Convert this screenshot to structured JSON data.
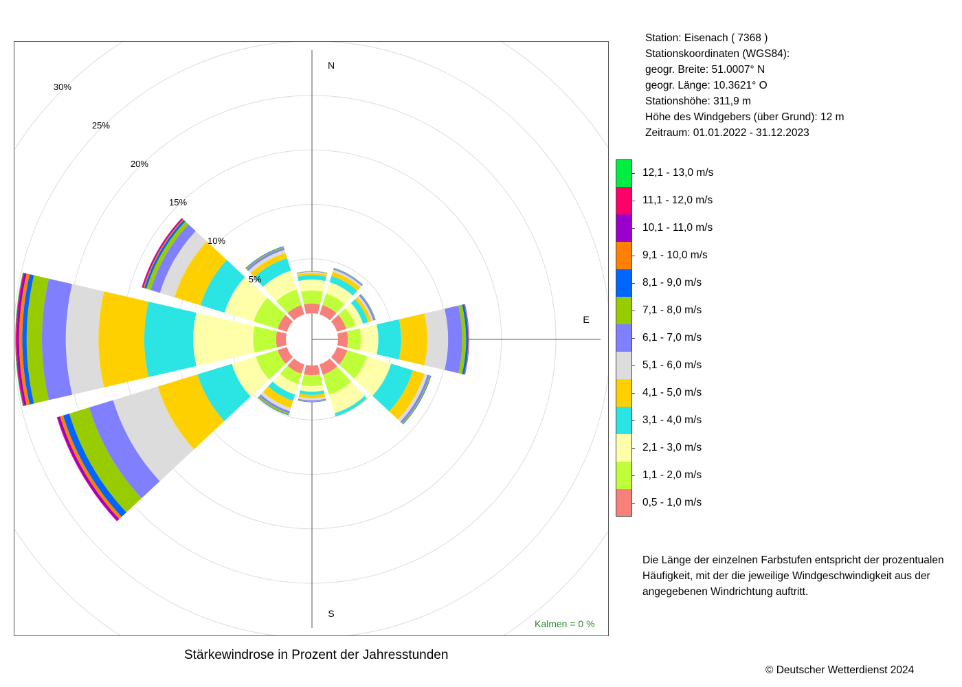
{
  "info": {
    "station": "Station:  Eisenach  ( 7368 )",
    "coords_heading": "Stationskoordinaten (WGS84):",
    "latitude": "geogr. Breite: 51.0007° N",
    "longitude": "geogr. Länge: 10.3621° O",
    "elevation": "Stationshöhe: 311,9 m",
    "sensor_height": "Höhe des Windgebers (über Grund): 12 m",
    "period": "Zeitraum: 01.01.2022 - 31.12.2023"
  },
  "explanation": "Die Länge der einzelnen Farbstufen entspricht der prozentualen Häufigkeit, mit der die jeweilige Windgeschwindigkeit aus der angegebenen Windrichtung auftritt.",
  "calm": "Kalmen  =  0 %",
  "copyright": "© Deutscher Wetterdienst  2024",
  "chart_data": {
    "type": "windrose",
    "title": "Stärkewindrose in Prozent der Jahresstunden",
    "radial_unit": "%",
    "rings": [
      5,
      10,
      15,
      20,
      25,
      30
    ],
    "ring_labels": [
      "5%",
      "10%",
      "15%",
      "20%",
      "25%",
      "30%"
    ],
    "compass": {
      "N": "N",
      "E": "E",
      "S": "S"
    },
    "direction_sectors_deg": [
      0,
      30,
      60,
      90,
      120,
      150,
      180,
      210,
      240,
      270,
      300,
      330
    ],
    "speed_classes": [
      {
        "label": "0,5 - 1,0 m/s",
        "color": "#F8807A"
      },
      {
        "label": "1,1 - 2,0 m/s",
        "color": "#BFFF3A"
      },
      {
        "label": "2,1 - 3,0 m/s",
        "color": "#FFFFAA"
      },
      {
        "label": "3,1 - 4,0 m/s",
        "color": "#2BE5E5"
      },
      {
        "label": "4,1 - 5,0 m/s",
        "color": "#FFD000"
      },
      {
        "label": "5,1 - 6,0 m/s",
        "color": "#DCDCDC"
      },
      {
        "label": "6,1 - 7,0 m/s",
        "color": "#8080FF"
      },
      {
        "label": "7,1 - 8,0 m/s",
        "color": "#99CC00"
      },
      {
        "label": "8,1 - 9,0 m/s",
        "color": "#0066FF"
      },
      {
        "label": "9,1 - 10,0 m/s",
        "color": "#FF8000"
      },
      {
        "label": "10,1 - 11,0 m/s",
        "color": "#9900CC"
      },
      {
        "label": "11,1 - 12,0 m/s",
        "color": "#FF0066"
      },
      {
        "label": "12,1 - 13,0 m/s",
        "color": "#00EE44"
      }
    ],
    "series": [
      {
        "direction": 0,
        "values": [
          0.9,
          1.2,
          1.0,
          0.4,
          0.2,
          0.1,
          0.05,
          0.03,
          0,
          0,
          0,
          0,
          0
        ]
      },
      {
        "direction": 30,
        "values": [
          0.9,
          1.1,
          1.1,
          0.6,
          0.4,
          0.2,
          0.1,
          0.05,
          0.02,
          0,
          0,
          0,
          0
        ]
      },
      {
        "direction": 60,
        "values": [
          0.9,
          0.9,
          0.7,
          0.5,
          0.3,
          0.2,
          0.15,
          0.05,
          0.02,
          0,
          0,
          0,
          0
        ]
      },
      {
        "direction": 90,
        "values": [
          0.9,
          1.2,
          1.6,
          2.1,
          2.4,
          1.9,
          1.3,
          0.35,
          0.2,
          0.05,
          0.03,
          0,
          0
        ]
      },
      {
        "direction": 120,
        "values": [
          1.0,
          1.9,
          2.3,
          2.1,
          1.1,
          0.3,
          0.2,
          0.1,
          0.05,
          0,
          0,
          0,
          0
        ]
      },
      {
        "direction": 150,
        "values": [
          1.0,
          1.9,
          1.8,
          0.3,
          0.03,
          0.02,
          0,
          0,
          0,
          0,
          0,
          0,
          0
        ]
      },
      {
        "direction": 180,
        "values": [
          0.9,
          1.0,
          0.5,
          0.3,
          0.3,
          0.2,
          0.1,
          0.05,
          0.02,
          0,
          0,
          0,
          0
        ]
      },
      {
        "direction": 210,
        "values": [
          0.9,
          1.0,
          1.0,
          0.6,
          0.7,
          0.3,
          0.2,
          0.15,
          0.05,
          0,
          0,
          0,
          0
        ]
      },
      {
        "direction": 240,
        "values": [
          0.9,
          2.1,
          2.3,
          3.3,
          3.8,
          4.3,
          2.3,
          1.9,
          0.6,
          0.3,
          0.25,
          0.05,
          0
        ]
      },
      {
        "direction": 270,
        "values": [
          0.9,
          2.1,
          5.5,
          4.5,
          4.2,
          3.0,
          2.2,
          1.4,
          0.4,
          0.3,
          0.2,
          0.1,
          0.05
        ]
      },
      {
        "direction": 300,
        "values": [
          0.9,
          2.3,
          2.8,
          2.3,
          2.5,
          1.4,
          0.9,
          0.4,
          0.2,
          0.1,
          0.1,
          0.05,
          0
        ]
      },
      {
        "direction": 330,
        "values": [
          0.9,
          1.5,
          1.8,
          1.2,
          0.5,
          0.3,
          0.2,
          0.1,
          0.05,
          0,
          0,
          0,
          0
        ]
      }
    ]
  }
}
